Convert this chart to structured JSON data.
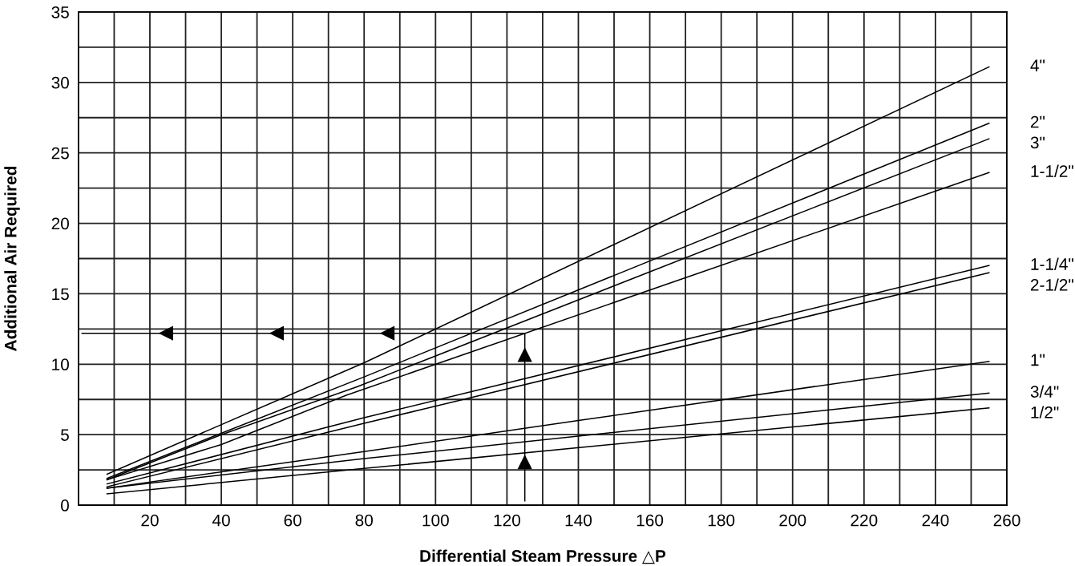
{
  "chart_data": {
    "type": "line",
    "xlabel": "Differential Steam Pressure △P",
    "ylabel": "Additional Air Required",
    "xlim": [
      0,
      260
    ],
    "ylim": [
      0,
      35
    ],
    "xticks": [
      {
        "value": 10,
        "label": null
      },
      20,
      {
        "value": 30,
        "label": null
      },
      40,
      {
        "value": 50,
        "label": null
      },
      60,
      {
        "value": 70,
        "label": null
      },
      80,
      {
        "value": 90,
        "label": null
      },
      100,
      {
        "value": 110,
        "label": null
      },
      120,
      {
        "value": 130,
        "label": null
      },
      140,
      {
        "value": 150,
        "label": null
      },
      160,
      {
        "value": 170,
        "label": null
      },
      180,
      {
        "value": 190,
        "label": null
      },
      200,
      {
        "value": 210,
        "label": null
      },
      220,
      {
        "value": 230,
        "label": null
      },
      240,
      {
        "value": 250,
        "label": null
      },
      260
    ],
    "yticks": [
      0,
      {
        "value": 2.5,
        "label": null
      },
      5,
      {
        "value": 7.5,
        "label": null
      },
      10,
      {
        "value": 12.5,
        "label": null
      },
      15,
      {
        "value": 17.5,
        "label": null
      },
      20,
      {
        "value": 22.5,
        "label": null
      },
      25,
      {
        "value": 27.5,
        "label": null
      },
      30,
      {
        "value": 32.5,
        "label": null
      },
      35
    ],
    "grid": true,
    "legend": false,
    "marker": "none",
    "line_style": "solid",
    "series": [
      {
        "name": "4\"",
        "color": "#000000",
        "x": [
          8,
          80,
          255
        ],
        "values": [
          2.2,
          10.1,
          31.1
        ]
      },
      {
        "name": "2\"",
        "color": "#000000",
        "x": [
          8,
          80,
          255
        ],
        "values": [
          1.9,
          9.1,
          27.1
        ]
      },
      {
        "name": "3\"",
        "color": "#000000",
        "x": [
          8,
          40,
          78,
          255
        ],
        "values": [
          1.8,
          5.0,
          8.4,
          26.0
        ]
      },
      {
        "name": "1-1/2\"",
        "color": "#000000",
        "x": [
          8,
          40,
          75,
          255
        ],
        "values": [
          1.8,
          4.3,
          7.8,
          23.6
        ]
      },
      {
        "name": "1-1/4\"",
        "color": "#000000",
        "x": [
          8,
          80,
          255
        ],
        "values": [
          1.5,
          6.2,
          17.0
        ]
      },
      {
        "name": "2-1/2\"",
        "color": "#000000",
        "x": [
          8,
          80,
          255
        ],
        "values": [
          1.3,
          5.8,
          16.5
        ]
      },
      {
        "name": "1\"",
        "color": "#000000",
        "x": [
          8,
          80,
          140,
          255
        ],
        "values": [
          1.2,
          3.8,
          6.0,
          10.2
        ]
      },
      {
        "name": "3/4\"",
        "color": "#000000",
        "x": [
          8,
          80,
          255
        ],
        "values": [
          1.2,
          3.3,
          7.95
        ]
      },
      {
        "name": "1/2\"",
        "color": "#000000",
        "x": [
          8,
          80,
          255
        ],
        "values": [
          0.8,
          2.6,
          6.9
        ]
      },
      {
        "type": "line",
        "color": "#000000",
        "x": [
          125,
          125,
          1
        ],
        "values": [
          0.3,
          12.2,
          12.2
        ]
      }
    ]
  }
}
